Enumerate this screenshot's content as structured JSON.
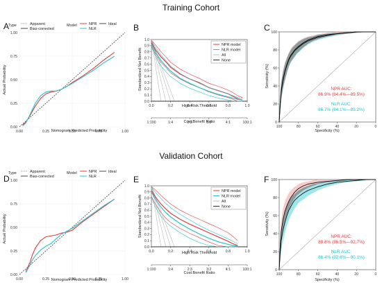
{
  "titles": {
    "training": "Training Cohort",
    "validation": "Validation Cohort"
  },
  "colors": {
    "npr": "#e8393b",
    "nlr": "#1fc4cf",
    "ideal": "#555555",
    "npr_band": "#f4b8b8",
    "nlr_band": "#7fdde3",
    "overlap": "#8c8c8c"
  },
  "chart_data": [
    {
      "id": "A",
      "type": "line",
      "cohort": "training",
      "xlabel": "Nomogram Predicted Probability",
      "ylabel": "Actual Probability",
      "xlim": [
        0,
        1
      ],
      "ylim": [
        0,
        1
      ],
      "xticks": [
        "0.00",
        "0.25",
        "0.50",
        "0.75",
        "1.00"
      ],
      "yticks": [
        "0.00",
        "0.25",
        "0.50",
        "0.75",
        "1.00"
      ],
      "legend": {
        "type_title": "Type",
        "model_title": "Model",
        "apparent": "Apparent",
        "bias_corrected": "Bias-corrected",
        "npr": "NPR",
        "nlr": "NLR",
        "ideal": "Ideal"
      },
      "series": [
        {
          "name": "NPR",
          "x": [
            0.03,
            0.06,
            0.1,
            0.15,
            0.2,
            0.25,
            0.3,
            0.35,
            0.4,
            0.45,
            0.5,
            0.6,
            0.7,
            0.8,
            0.9
          ],
          "y": [
            0.02,
            0.05,
            0.12,
            0.22,
            0.3,
            0.35,
            0.37,
            0.38,
            0.4,
            0.43,
            0.47,
            0.54,
            0.62,
            0.71,
            0.79
          ]
        },
        {
          "name": "NLR",
          "x": [
            0.03,
            0.06,
            0.1,
            0.15,
            0.2,
            0.25,
            0.3,
            0.35,
            0.4,
            0.45,
            0.5,
            0.6,
            0.7,
            0.8,
            0.9
          ],
          "y": [
            0.01,
            0.04,
            0.13,
            0.25,
            0.33,
            0.37,
            0.38,
            0.38,
            0.4,
            0.43,
            0.46,
            0.53,
            0.6,
            0.68,
            0.75
          ]
        }
      ]
    },
    {
      "id": "B",
      "type": "line",
      "cohort": "training",
      "xlabel": "High Risk Threshold",
      "ylabel": "Standardized Net Benefit",
      "x2label": "Cost:Benefit Ratio",
      "xlim": [
        0,
        1
      ],
      "ylim": [
        0,
        1
      ],
      "xticks": [
        "0.0",
        "0.2",
        "0.4",
        "0.6",
        "0.8",
        "1.0"
      ],
      "yticks": [
        "0.0",
        "0.1",
        "0.2",
        "0.3",
        "0.4",
        "0.5",
        "0.6",
        "0.7",
        "0.8",
        "0.9",
        "1.0"
      ],
      "x2ticks": [
        "1:100",
        "1:4",
        "2:3",
        "3:2",
        "4:1",
        "100:1"
      ],
      "legend": [
        "NPR model",
        "NLR model",
        "All",
        "None"
      ],
      "series": [
        {
          "name": "NPR model",
          "x": [
            0,
            0.05,
            0.1,
            0.15,
            0.2,
            0.3,
            0.4,
            0.5,
            0.6,
            0.7,
            0.8,
            0.85,
            0.9,
            0.95
          ],
          "y": [
            0.95,
            0.82,
            0.72,
            0.64,
            0.55,
            0.44,
            0.36,
            0.3,
            0.22,
            0.17,
            0.12,
            0.08,
            0.04,
            0.02
          ],
          "upper": [
            0.99,
            0.9,
            0.8,
            0.72,
            0.63,
            0.52,
            0.44,
            0.37,
            0.29,
            0.24,
            0.18,
            0.14,
            0.09,
            0.06
          ],
          "lower": [
            0.9,
            0.74,
            0.63,
            0.55,
            0.46,
            0.36,
            0.28,
            0.22,
            0.15,
            0.1,
            0.06,
            0.03,
            0.0,
            0.0
          ]
        },
        {
          "name": "NLR model",
          "x": [
            0,
            0.05,
            0.1,
            0.15,
            0.2,
            0.3,
            0.4,
            0.5,
            0.6,
            0.7,
            0.8,
            0.85,
            0.9,
            0.95
          ],
          "y": [
            0.93,
            0.78,
            0.66,
            0.57,
            0.49,
            0.37,
            0.29,
            0.22,
            0.16,
            0.11,
            0.07,
            0.05,
            0.03,
            0.02
          ],
          "upper": [
            0.98,
            0.86,
            0.75,
            0.66,
            0.57,
            0.45,
            0.36,
            0.29,
            0.22,
            0.17,
            0.12,
            0.09,
            0.06,
            0.05
          ],
          "lower": [
            0.88,
            0.7,
            0.57,
            0.48,
            0.4,
            0.29,
            0.21,
            0.15,
            0.09,
            0.05,
            0.02,
            0.0,
            0.0,
            0.0
          ]
        }
      ]
    },
    {
      "id": "C",
      "type": "line",
      "cohort": "training",
      "xlabel": "Specificity (%)",
      "ylabel": "Sensitivity (%)",
      "xticks": [
        "100",
        "80",
        "60",
        "40",
        "20",
        "0"
      ],
      "yticks": [
        "0",
        "20",
        "40",
        "60",
        "80",
        "100"
      ],
      "npr_auc_label": "NPR AUC:",
      "npr_auc": "86.9% (84.4%—89.5%)",
      "nlr_auc_label": "NLR AUC:",
      "nlr_auc": "86.7% (84.1%—89.2%)",
      "series": [
        {
          "name": "NPR",
          "spec": [
            100,
            99,
            98,
            96,
            94,
            92,
            90,
            88,
            86,
            84,
            82,
            80,
            75,
            70,
            65,
            60,
            50,
            40,
            30,
            20,
            10,
            0
          ],
          "sens": [
            0,
            20,
            35,
            48,
            57,
            64,
            70,
            74,
            77,
            80,
            82,
            84,
            88,
            91,
            93,
            95,
            97,
            98,
            99,
            100,
            100,
            100
          ],
          "upper": [
            0,
            28,
            45,
            58,
            66,
            72,
            77,
            81,
            84,
            86,
            88,
            90,
            93,
            95,
            96,
            97,
            99,
            100,
            100,
            100,
            100,
            100
          ],
          "lower": [
            0,
            12,
            25,
            38,
            47,
            55,
            62,
            67,
            70,
            73,
            76,
            78,
            83,
            87,
            90,
            92,
            95,
            97,
            98,
            99,
            100,
            100
          ]
        },
        {
          "name": "NLR",
          "spec": [
            100,
            99,
            98,
            96,
            94,
            92,
            90,
            88,
            86,
            84,
            82,
            80,
            75,
            70,
            65,
            60,
            50,
            40,
            30,
            20,
            10,
            0
          ],
          "sens": [
            0,
            18,
            33,
            46,
            56,
            63,
            69,
            73,
            76,
            79,
            81,
            83,
            87,
            90,
            92,
            94,
            96,
            98,
            99,
            100,
            100,
            100
          ],
          "upper": [
            0,
            26,
            43,
            56,
            65,
            71,
            76,
            80,
            83,
            85,
            87,
            89,
            92,
            94,
            95,
            97,
            98,
            99,
            100,
            100,
            100,
            100
          ],
          "lower": [
            0,
            10,
            23,
            36,
            46,
            54,
            61,
            66,
            69,
            72,
            75,
            77,
            82,
            86,
            89,
            91,
            94,
            96,
            98,
            99,
            100,
            100
          ]
        }
      ]
    },
    {
      "id": "D",
      "type": "line",
      "cohort": "validation",
      "xlabel": "Nomogram Predicted Probability",
      "ylabel": "Actual Probability",
      "xlim": [
        0,
        1
      ],
      "ylim": [
        0,
        1
      ],
      "xticks": [
        "0.00",
        "0.25",
        "0.50",
        "0.75",
        "1.00"
      ],
      "yticks": [
        "0.00",
        "0.25",
        "0.50",
        "0.75",
        "1.00"
      ],
      "legend": {
        "type_title": "Type",
        "model_title": "Model",
        "apparent": "Apparent",
        "bias_corrected": "Bias-corrected",
        "npr": "NPR",
        "nlr": "NLR",
        "ideal": "Ideal"
      },
      "series": [
        {
          "name": "NPR",
          "x": [
            0.06,
            0.08,
            0.1,
            0.12,
            0.15,
            0.2,
            0.25,
            0.3,
            0.35,
            0.4,
            0.45,
            0.5,
            0.6,
            0.7,
            0.8,
            0.9
          ],
          "y": [
            0.03,
            0.08,
            0.13,
            0.2,
            0.28,
            0.36,
            0.4,
            0.41,
            0.42,
            0.44,
            0.45,
            0.47,
            0.56,
            0.64,
            0.72,
            0.8
          ]
        },
        {
          "name": "NLR",
          "x": [
            0.06,
            0.08,
            0.1,
            0.12,
            0.15,
            0.2,
            0.25,
            0.3,
            0.35,
            0.4,
            0.45,
            0.5,
            0.6,
            0.7,
            0.8,
            0.9
          ],
          "y": [
            0.02,
            0.06,
            0.1,
            0.15,
            0.2,
            0.26,
            0.3,
            0.33,
            0.38,
            0.43,
            0.46,
            0.49,
            0.57,
            0.65,
            0.73,
            0.8
          ]
        }
      ]
    },
    {
      "id": "E",
      "type": "line",
      "cohort": "validation",
      "xlabel": "High Risk Threshold",
      "ylabel": "Standardized Net Benefit",
      "x2label": "Cost:Benefit Ratio",
      "xlim": [
        0,
        1
      ],
      "ylim": [
        0,
        1
      ],
      "xticks": [
        "0.0",
        "0.2",
        "0.4",
        "0.6",
        "0.8",
        "1.0"
      ],
      "yticks": [
        "0.0",
        "0.1",
        "0.2",
        "0.3",
        "0.4",
        "0.5",
        "0.6",
        "0.7",
        "0.8",
        "0.9",
        "1.0"
      ],
      "x2ticks": [
        "1:100",
        "1:4",
        "2:3",
        "3:2",
        "4:1",
        "100:1"
      ],
      "legend": [
        "NPR model",
        "NLR model",
        "All",
        "None"
      ],
      "series": [
        {
          "name": "NPR model",
          "x": [
            0,
            0.05,
            0.1,
            0.15,
            0.2,
            0.3,
            0.4,
            0.5,
            0.6,
            0.7,
            0.8,
            0.85,
            0.9
          ],
          "y": [
            0.92,
            0.8,
            0.7,
            0.62,
            0.55,
            0.45,
            0.37,
            0.3,
            0.23,
            0.16,
            0.09,
            0.05,
            0.02
          ],
          "upper": [
            0.99,
            0.92,
            0.84,
            0.77,
            0.7,
            0.6,
            0.52,
            0.45,
            0.38,
            0.31,
            0.23,
            0.17,
            0.1
          ],
          "lower": [
            0.82,
            0.68,
            0.56,
            0.47,
            0.4,
            0.3,
            0.22,
            0.15,
            0.08,
            0.02,
            0.0,
            0.0,
            0.0
          ]
        },
        {
          "name": "NLR model",
          "x": [
            0,
            0.05,
            0.1,
            0.15,
            0.2,
            0.3,
            0.4,
            0.5,
            0.6,
            0.7,
            0.8,
            0.85,
            0.9
          ],
          "y": [
            0.9,
            0.76,
            0.65,
            0.56,
            0.49,
            0.38,
            0.29,
            0.21,
            0.14,
            0.08,
            0.04,
            0.02,
            0.01
          ],
          "upper": [
            0.98,
            0.88,
            0.79,
            0.71,
            0.64,
            0.53,
            0.44,
            0.35,
            0.27,
            0.2,
            0.13,
            0.09,
            0.05
          ],
          "lower": [
            0.8,
            0.63,
            0.5,
            0.41,
            0.34,
            0.23,
            0.14,
            0.07,
            0.02,
            0.0,
            0.0,
            0.0,
            0.0
          ]
        }
      ]
    },
    {
      "id": "F",
      "type": "line",
      "cohort": "validation",
      "xlabel": "Specificity (%)",
      "ylabel": "Sensitivity (%)",
      "xticks": [
        "100",
        "80",
        "60",
        "40",
        "20",
        "0"
      ],
      "yticks": [
        "0",
        "20",
        "40",
        "60",
        "80",
        "100"
      ],
      "npr_auc_label": "NPR AUC:",
      "npr_auc": "89.8% (86.5%—92.7%)",
      "nlr_auc_label": "NLR AUC:",
      "nlr_auc": "86.4% (82.6%—90.1%)",
      "series": [
        {
          "name": "NPR",
          "spec": [
            100,
            99,
            98,
            96,
            94,
            92,
            90,
            88,
            86,
            84,
            82,
            80,
            75,
            70,
            65,
            60,
            50,
            40,
            30,
            20,
            10,
            0
          ],
          "sens": [
            0,
            25,
            42,
            56,
            65,
            71,
            76,
            80,
            83,
            86,
            88,
            90,
            93,
            95,
            96,
            97,
            98,
            99,
            100,
            100,
            100,
            100
          ],
          "upper": [
            0,
            36,
            55,
            68,
            76,
            81,
            85,
            88,
            90,
            92,
            93,
            95,
            97,
            98,
            99,
            100,
            100,
            100,
            100,
            100,
            100,
            100
          ],
          "lower": [
            0,
            15,
            30,
            44,
            54,
            61,
            67,
            72,
            76,
            79,
            82,
            84,
            88,
            91,
            93,
            95,
            97,
            98,
            99,
            100,
            100,
            100
          ]
        },
        {
          "name": "NLR",
          "spec": [
            100,
            99,
            98,
            96,
            94,
            92,
            90,
            88,
            86,
            84,
            82,
            80,
            75,
            70,
            65,
            60,
            50,
            40,
            30,
            20,
            10,
            0
          ],
          "sens": [
            0,
            18,
            32,
            44,
            53,
            60,
            66,
            70,
            74,
            77,
            79,
            81,
            85,
            88,
            90,
            92,
            95,
            97,
            98,
            99,
            100,
            100
          ],
          "upper": [
            0,
            28,
            44,
            56,
            65,
            71,
            76,
            79,
            82,
            84,
            86,
            88,
            91,
            93,
            95,
            96,
            98,
            99,
            100,
            100,
            100,
            100
          ],
          "lower": [
            0,
            9,
            20,
            32,
            41,
            49,
            55,
            60,
            64,
            68,
            71,
            74,
            78,
            82,
            85,
            88,
            92,
            95,
            97,
            98,
            99,
            100
          ]
        }
      ]
    }
  ]
}
